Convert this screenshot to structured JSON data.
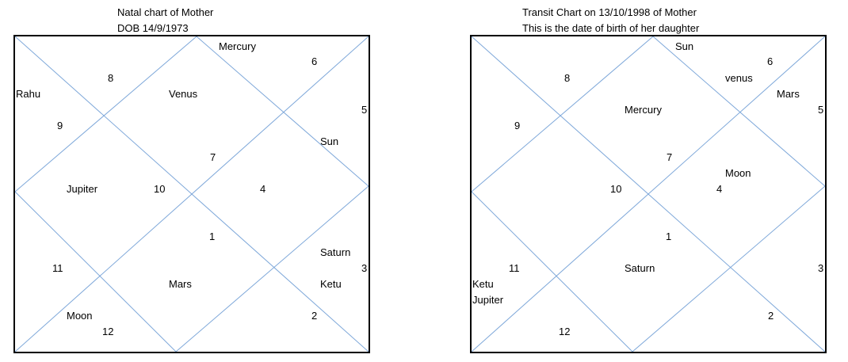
{
  "charts": [
    {
      "title_line1": "Natal chart of Mother",
      "title_line2": "DOB 14/9/1973",
      "numbers": [
        "8",
        "6",
        "5",
        "9",
        "7",
        "10",
        "4",
        "1",
        "11",
        "3",
        "2",
        "12"
      ],
      "planets": [
        "Mercury",
        "Rahu",
        "Venus",
        "Sun",
        "Jupiter",
        "Saturn",
        "Mars",
        "Ketu",
        "Moon"
      ]
    },
    {
      "title_line1": "Transit Chart on 13/10/1998 of Mother",
      "title_line2": "This is the date of birth of her daughter",
      "numbers": [
        "6",
        "8",
        "5",
        "9",
        "7",
        "10",
        "4",
        "1",
        "11",
        "3",
        "2",
        "12"
      ],
      "planets": [
        "Sun",
        "venus",
        "Mars",
        "Mercury",
        "Moon",
        "Saturn",
        "Ketu",
        "Jupiter"
      ]
    }
  ]
}
